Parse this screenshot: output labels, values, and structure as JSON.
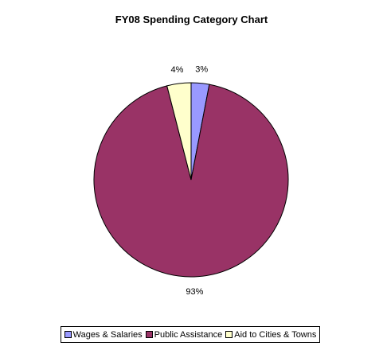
{
  "chart_data": {
    "type": "pie",
    "title": "FY08 Spending Category Chart",
    "slices": [
      {
        "name": "Wages & Salaries",
        "value": 3,
        "label": "3%",
        "color": "#9999ff"
      },
      {
        "name": "Public Assistance",
        "value": 93,
        "label": "93%",
        "color": "#993366"
      },
      {
        "name": "Aid to Cities & Towns",
        "value": 4,
        "label": "4%",
        "color": "#ffffcc"
      }
    ],
    "legend_position": "bottom"
  }
}
